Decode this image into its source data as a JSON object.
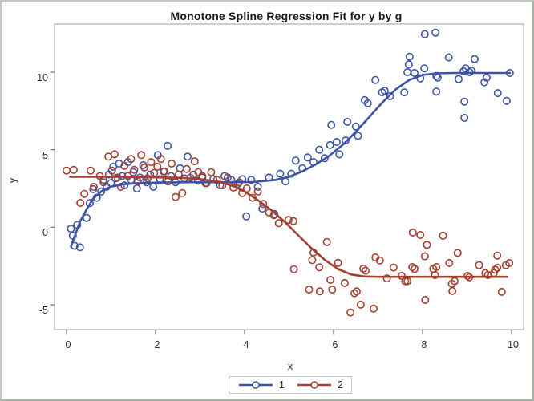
{
  "chart_data": {
    "type": "scatter",
    "title": "Monotone Spline Regression Fit for y by g",
    "xlabel": "x",
    "ylabel": "y",
    "xlim": [
      -0.27,
      10.27
    ],
    "ylim": [
      -6.6,
      13.2
    ],
    "x_ticks": [
      0,
      2,
      4,
      6,
      8,
      10
    ],
    "y_ticks": [
      -5,
      0,
      5,
      10
    ],
    "grid": false,
    "legend_position": "bottom-center",
    "frame_color": "#aeaeae",
    "tick_color": "#6f6f6f",
    "series": [
      {
        "name": "1",
        "color": "#3b54a5",
        "marker": "open-circle",
        "fit": [
          [
            0.1,
            -1.25
          ],
          [
            0.2,
            -0.45
          ],
          [
            0.3,
            0.35
          ],
          [
            0.45,
            1.15
          ],
          [
            0.6,
            1.85
          ],
          [
            0.8,
            2.35
          ],
          [
            1.0,
            2.62
          ],
          [
            1.3,
            2.78
          ],
          [
            1.7,
            2.85
          ],
          [
            2.2,
            2.88
          ],
          [
            2.8,
            2.9
          ],
          [
            3.5,
            2.9
          ],
          [
            4.2,
            2.92
          ],
          [
            4.7,
            3.05
          ],
          [
            5.0,
            3.25
          ],
          [
            5.3,
            3.6
          ],
          [
            5.6,
            4.05
          ],
          [
            5.9,
            4.6
          ],
          [
            6.2,
            5.3
          ],
          [
            6.5,
            6.15
          ],
          [
            6.8,
            7.1
          ],
          [
            7.1,
            8.05
          ],
          [
            7.4,
            8.9
          ],
          [
            7.7,
            9.5
          ],
          [
            8.0,
            9.82
          ],
          [
            8.3,
            9.92
          ],
          [
            8.7,
            9.95
          ],
          [
            9.3,
            9.95
          ],
          [
            9.96,
            9.95
          ]
        ],
        "points": [
          [
            0.1,
            -0.1
          ],
          [
            0.14,
            -0.55
          ],
          [
            0.18,
            -1.2
          ],
          [
            0.3,
            -1.3
          ],
          [
            0.24,
            0.15
          ],
          [
            0.45,
            0.6
          ],
          [
            0.52,
            1.55
          ],
          [
            0.6,
            2.45
          ],
          [
            0.68,
            1.9
          ],
          [
            0.78,
            2.3
          ],
          [
            0.83,
            3.05
          ],
          [
            0.9,
            2.6
          ],
          [
            0.95,
            3.4
          ],
          [
            1.0,
            2.85
          ],
          [
            1.05,
            3.9
          ],
          [
            1.1,
            3.15
          ],
          [
            1.18,
            4.1
          ],
          [
            1.25,
            3.3
          ],
          [
            1.3,
            2.7
          ],
          [
            1.38,
            4.2
          ],
          [
            1.45,
            3.05
          ],
          [
            1.5,
            3.55
          ],
          [
            1.58,
            2.5
          ],
          [
            1.65,
            3.2
          ],
          [
            1.72,
            4.0
          ],
          [
            1.8,
            2.9
          ],
          [
            1.88,
            3.4
          ],
          [
            1.95,
            2.6
          ],
          [
            2.05,
            4.65
          ],
          [
            2.1,
            3.1
          ],
          [
            2.18,
            3.6
          ],
          [
            2.27,
            5.25
          ],
          [
            2.35,
            3.3
          ],
          [
            2.45,
            2.9
          ],
          [
            2.55,
            3.8
          ],
          [
            2.65,
            3.15
          ],
          [
            2.72,
            4.55
          ],
          [
            2.85,
            3.4
          ],
          [
            2.95,
            3.0
          ],
          [
            3.05,
            3.2
          ],
          [
            3.15,
            2.85
          ],
          [
            3.3,
            3.1
          ],
          [
            3.45,
            2.7
          ],
          [
            3.55,
            3.3
          ],
          [
            3.7,
            3.05
          ],
          [
            3.85,
            2.8
          ],
          [
            3.95,
            3.1
          ],
          [
            4.04,
            0.7
          ],
          [
            4.15,
            3.05
          ],
          [
            4.3,
            2.6
          ],
          [
            4.4,
            1.2
          ],
          [
            4.55,
            3.2
          ],
          [
            4.67,
            0.85
          ],
          [
            4.8,
            3.45
          ],
          [
            4.92,
            2.95
          ],
          [
            5.05,
            3.45
          ],
          [
            5.15,
            4.3
          ],
          [
            5.3,
            3.8
          ],
          [
            5.42,
            4.5
          ],
          [
            5.55,
            4.2
          ],
          [
            5.68,
            5.0
          ],
          [
            5.8,
            4.45
          ],
          [
            5.92,
            5.3
          ],
          [
            5.95,
            6.6
          ],
          [
            6.07,
            5.5
          ],
          [
            6.13,
            4.7
          ],
          [
            6.27,
            5.6
          ],
          [
            6.31,
            6.8
          ],
          [
            6.5,
            6.5
          ],
          [
            6.55,
            5.9
          ],
          [
            6.7,
            8.2
          ],
          [
            6.77,
            8.0
          ],
          [
            6.94,
            9.5
          ],
          [
            7.09,
            8.7
          ],
          [
            7.15,
            8.8
          ],
          [
            7.27,
            8.45
          ],
          [
            7.59,
            8.7
          ],
          [
            7.66,
            10.0
          ],
          [
            7.69,
            10.5
          ],
          [
            7.71,
            11.0
          ],
          [
            7.82,
            9.95
          ],
          [
            7.95,
            9.6
          ],
          [
            8.04,
            10.25
          ],
          [
            8.05,
            12.45
          ],
          [
            8.29,
            12.55
          ],
          [
            8.31,
            9.75
          ],
          [
            8.34,
            9.65
          ],
          [
            8.31,
            8.75
          ],
          [
            8.59,
            10.95
          ],
          [
            8.81,
            9.55
          ],
          [
            8.92,
            10.05
          ],
          [
            8.94,
            8.1
          ],
          [
            8.94,
            7.05
          ],
          [
            8.97,
            10.25
          ],
          [
            9.06,
            10.0
          ],
          [
            9.1,
            10.1
          ],
          [
            9.17,
            10.85
          ],
          [
            9.39,
            9.35
          ],
          [
            9.44,
            9.65
          ],
          [
            9.69,
            8.65
          ],
          [
            9.89,
            8.15
          ],
          [
            9.96,
            9.95
          ]
        ]
      },
      {
        "name": "2",
        "color": "#a43e2e",
        "marker": "open-circle",
        "fit": [
          [
            0.08,
            3.25
          ],
          [
            1.0,
            3.25
          ],
          [
            2.0,
            3.22
          ],
          [
            2.6,
            3.18
          ],
          [
            3.0,
            3.1
          ],
          [
            3.4,
            2.95
          ],
          [
            3.7,
            2.7
          ],
          [
            4.0,
            2.3
          ],
          [
            4.3,
            1.75
          ],
          [
            4.6,
            1.1
          ],
          [
            4.9,
            0.35
          ],
          [
            5.2,
            -0.5
          ],
          [
            5.5,
            -1.35
          ],
          [
            5.8,
            -2.1
          ],
          [
            6.1,
            -2.7
          ],
          [
            6.4,
            -3.05
          ],
          [
            6.7,
            -3.18
          ],
          [
            7.0,
            -3.2
          ],
          [
            8.0,
            -3.2
          ],
          [
            9.0,
            -3.2
          ],
          [
            9.9,
            -3.2
          ]
        ],
        "points": [
          [
            0.0,
            3.65
          ],
          [
            0.16,
            3.7
          ],
          [
            0.31,
            1.57
          ],
          [
            0.4,
            2.15
          ],
          [
            0.54,
            3.65
          ],
          [
            0.61,
            2.6
          ],
          [
            0.75,
            3.3
          ],
          [
            0.83,
            2.9
          ],
          [
            0.94,
            4.55
          ],
          [
            1.02,
            3.65
          ],
          [
            1.08,
            4.7
          ],
          [
            1.15,
            3.2
          ],
          [
            1.22,
            2.6
          ],
          [
            1.3,
            3.95
          ],
          [
            1.38,
            3.3
          ],
          [
            1.45,
            4.4
          ],
          [
            1.52,
            3.7
          ],
          [
            1.6,
            2.95
          ],
          [
            1.68,
            4.65
          ],
          [
            1.75,
            3.85
          ],
          [
            1.82,
            3.15
          ],
          [
            1.9,
            4.2
          ],
          [
            1.97,
            3.5
          ],
          [
            2.04,
            3.9
          ],
          [
            2.12,
            4.4
          ],
          [
            2.2,
            3.6
          ],
          [
            2.28,
            2.95
          ],
          [
            2.36,
            4.1
          ],
          [
            2.45,
            1.95
          ],
          [
            2.52,
            3.4
          ],
          [
            2.6,
            2.2
          ],
          [
            2.7,
            3.75
          ],
          [
            2.78,
            3.2
          ],
          [
            2.88,
            4.25
          ],
          [
            2.96,
            3.55
          ],
          [
            3.05,
            3.3
          ],
          [
            3.12,
            2.85
          ],
          [
            3.25,
            3.55
          ],
          [
            3.38,
            3.05
          ],
          [
            3.5,
            2.7
          ],
          [
            3.62,
            3.2
          ],
          [
            3.75,
            2.55
          ],
          [
            3.88,
            2.9
          ],
          [
            3.95,
            2.2
          ],
          [
            4.05,
            2.5
          ],
          [
            4.18,
            1.9
          ],
          [
            4.3,
            2.3
          ],
          [
            4.42,
            1.5
          ],
          [
            4.55,
            0.95
          ],
          [
            4.66,
            0.78
          ],
          [
            4.77,
            0.26
          ],
          [
            4.99,
            0.47
          ],
          [
            5.1,
            0.4
          ],
          [
            5.11,
            -2.71
          ],
          [
            5.45,
            -4.02
          ],
          [
            5.52,
            -2.12
          ],
          [
            5.55,
            -1.64
          ],
          [
            5.68,
            -2.58
          ],
          [
            5.69,
            -4.14
          ],
          [
            5.85,
            -0.95
          ],
          [
            5.93,
            -3.4
          ],
          [
            5.97,
            -4.02
          ],
          [
            6.1,
            -2.3
          ],
          [
            6.25,
            -3.6
          ],
          [
            6.38,
            -5.5
          ],
          [
            6.47,
            -4.26
          ],
          [
            6.52,
            -4.14
          ],
          [
            6.61,
            -5.0
          ],
          [
            6.67,
            -2.67
          ],
          [
            6.72,
            -2.81
          ],
          [
            6.9,
            -5.25
          ],
          [
            6.94,
            -1.95
          ],
          [
            7.04,
            -2.15
          ],
          [
            7.2,
            -3.3
          ],
          [
            7.35,
            -2.6
          ],
          [
            7.53,
            -3.14
          ],
          [
            7.61,
            -3.48
          ],
          [
            7.66,
            -3.48
          ],
          [
            7.77,
            -2.57
          ],
          [
            7.78,
            -0.34
          ],
          [
            7.82,
            -2.69
          ],
          [
            7.95,
            -0.5
          ],
          [
            8.05,
            -1.88
          ],
          [
            8.06,
            -4.69
          ],
          [
            8.1,
            -1.14
          ],
          [
            8.24,
            -2.69
          ],
          [
            8.28,
            -3.09
          ],
          [
            8.31,
            -2.57
          ],
          [
            8.46,
            -0.55
          ],
          [
            8.6,
            -2.31
          ],
          [
            8.66,
            -3.65
          ],
          [
            8.67,
            -4.12
          ],
          [
            8.72,
            -3.48
          ],
          [
            8.79,
            -1.66
          ],
          [
            9.01,
            -3.14
          ],
          [
            9.05,
            -3.23
          ],
          [
            9.27,
            -2.45
          ],
          [
            9.41,
            -2.96
          ],
          [
            9.47,
            -3.09
          ],
          [
            9.6,
            -2.96
          ],
          [
            9.63,
            -2.74
          ],
          [
            9.68,
            -1.83
          ],
          [
            9.68,
            -2.62
          ],
          [
            9.78,
            -4.17
          ],
          [
            9.87,
            -2.45
          ],
          [
            9.95,
            -2.31
          ]
        ]
      }
    ]
  }
}
